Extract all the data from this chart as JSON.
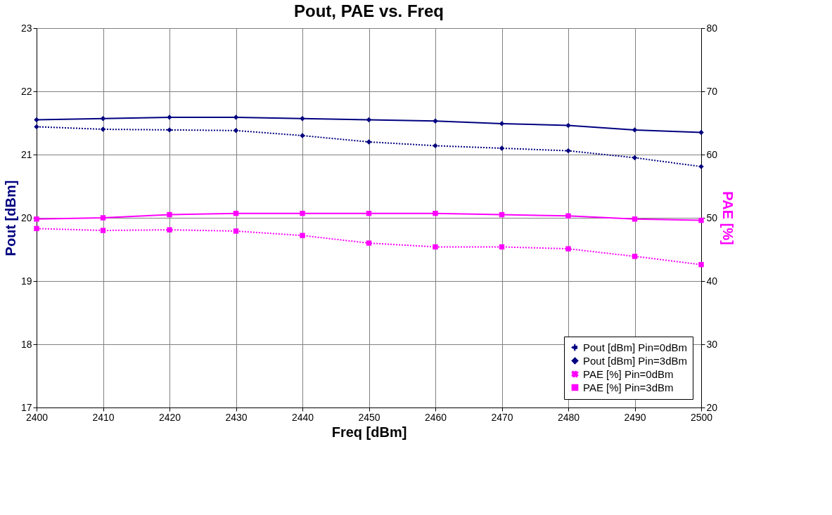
{
  "chart_data": {
    "type": "line",
    "title": "Pout, PAE vs. Freq",
    "xlabel": "Freq [dBm]",
    "ylabel": "Pout [dBm]",
    "y2label": "PAE [%]",
    "x": [
      2400,
      2410,
      2420,
      2430,
      2440,
      2450,
      2460,
      2470,
      2480,
      2490,
      2500
    ],
    "xlim": [
      2400,
      2500
    ],
    "xticks": [
      2400,
      2410,
      2420,
      2430,
      2440,
      2450,
      2460,
      2470,
      2480,
      2490,
      2500
    ],
    "ylim": [
      17,
      23
    ],
    "yticks": [
      17,
      18,
      19,
      20,
      21,
      22,
      23
    ],
    "y2lim": [
      20,
      80
    ],
    "y2ticks": [
      20,
      30,
      40,
      50,
      60,
      70,
      80
    ],
    "grid": true,
    "legend": "bottom right",
    "series": [
      {
        "name": "Pout [dBm] Pin=0dBm",
        "color": "#000080",
        "marker": "diamond",
        "line_style": "dotted",
        "values": [
          21.44,
          21.4,
          21.39,
          21.38,
          21.3,
          21.2,
          21.14,
          21.1,
          21.06,
          20.95,
          20.81
        ]
      },
      {
        "name": "Pout [dBm] Pin=3dBm",
        "color": "#000080",
        "marker": "diamond",
        "line_style": "solid",
        "values": [
          21.55,
          21.57,
          21.59,
          21.59,
          21.57,
          21.55,
          21.53,
          21.49,
          21.46,
          21.39,
          21.35
        ]
      },
      {
        "name": "PAE [%] Pin=0dBm",
        "color": "#ff00ff",
        "marker": "square",
        "line_style": "dotted",
        "axis": "y2",
        "values": [
          48.3,
          48.0,
          48.1,
          47.9,
          47.2,
          46.0,
          45.4,
          45.4,
          45.1,
          43.9,
          42.6
        ]
      },
      {
        "name": "PAE [%] Pin=3dBm",
        "color": "#ff00ff",
        "marker": "square",
        "line_style": "solid",
        "axis": "y2",
        "values": [
          49.8,
          50.0,
          50.5,
          50.7,
          50.7,
          50.7,
          50.7,
          50.5,
          50.3,
          49.8,
          49.6
        ]
      }
    ]
  }
}
